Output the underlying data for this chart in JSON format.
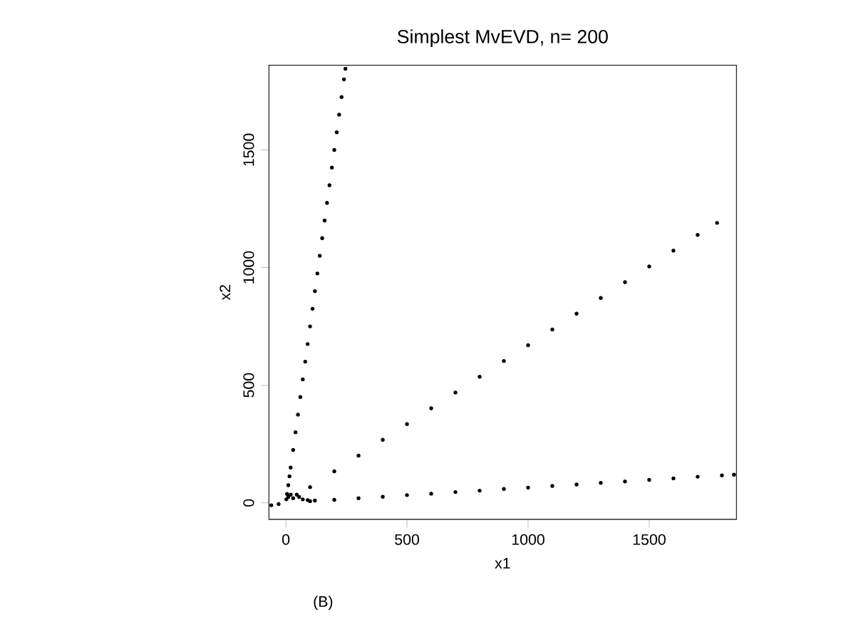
{
  "chart_data": {
    "type": "scatter",
    "title": "Simplest MvEVD, n= 200",
    "xlabel": "x1",
    "ylabel": "x2",
    "annotations": [
      "(B)"
    ],
    "xlim": [
      -70,
      1860
    ],
    "ylim": [
      -70,
      1860
    ],
    "xticks": [
      0,
      500,
      1000,
      1500
    ],
    "yticks": [
      0,
      500,
      1000,
      1500
    ],
    "grid": false,
    "series": [
      {
        "color": "#000000",
        "x": [
          2,
          5,
          10,
          15,
          20,
          30,
          40,
          50,
          60,
          70,
          80,
          90,
          100,
          110,
          120,
          130,
          140,
          150,
          160,
          170,
          180,
          190,
          200,
          210,
          220,
          230,
          240,
          246
        ],
        "values": [
          15,
          38,
          75,
          113,
          150,
          225,
          300,
          375,
          450,
          525,
          600,
          675,
          750,
          825,
          900,
          975,
          1050,
          1125,
          1200,
          1275,
          1350,
          1425,
          1500,
          1575,
          1650,
          1725,
          1800,
          1845
        ]
      },
      {
        "color": "#000000",
        "x": [
          100,
          200,
          300,
          400,
          500,
          600,
          700,
          800,
          900,
          1000,
          1100,
          1200,
          1300,
          1400,
          1500,
          1600,
          1700,
          1780
        ],
        "values": [
          67,
          134,
          201,
          268,
          335,
          402,
          469,
          536,
          603,
          670,
          737,
          804,
          871,
          938,
          1005,
          1072,
          1139,
          1190
        ]
      },
      {
        "color": "#000000",
        "x": [
          -60,
          -30,
          100,
          200,
          300,
          400,
          500,
          600,
          700,
          800,
          900,
          1000,
          1100,
          1200,
          1300,
          1400,
          1500,
          1600,
          1700,
          1800,
          1850
        ],
        "values": [
          -10,
          -5,
          7,
          13,
          20,
          26,
          33,
          39,
          46,
          52,
          59,
          65,
          72,
          78,
          85,
          91,
          98,
          104,
          111,
          117,
          120
        ]
      },
      {
        "color": "#000000",
        "x": [
          10,
          20,
          30,
          45,
          55,
          70,
          90,
          120
        ],
        "values": [
          25,
          35,
          20,
          35,
          25,
          15,
          12,
          10
        ]
      }
    ]
  }
}
